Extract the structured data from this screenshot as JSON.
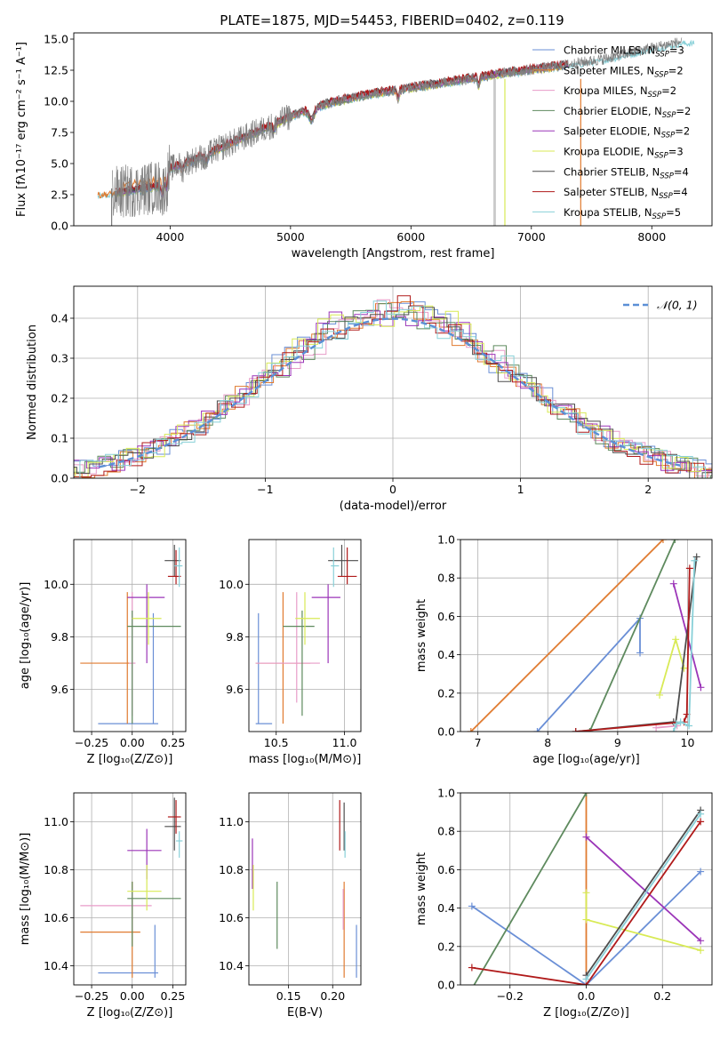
{
  "figure_title": "PLATE=1875, MJD=54453, FIBERID=0402, z=0.119",
  "colors": {
    "chabrier_miles": "#6a8fd6",
    "salpeter_miles": "#e07b30",
    "kroupa_miles": "#e89cc8",
    "chabrier_elodie": "#5e8a5e",
    "salpeter_elodie": "#9b35b8",
    "kroupa_elodie": "#d8ea55",
    "chabrier_stelib": "#4d4d4d",
    "salpeter_stelib": "#b01a1a",
    "kroupa_stelib": "#88d0d8",
    "data": "#808080",
    "gaussian": "#5b8fd6"
  },
  "chart_data": [
    {
      "id": "spectrum",
      "type": "line",
      "xlabel": "wavelength [Angstrom, rest frame]",
      "ylabel": "Flux [fλ10⁻¹⁷ erg cm⁻² s⁻¹ A⁻¹]",
      "xlim": [
        3200,
        8500
      ],
      "ylim": [
        0,
        15.5
      ],
      "xticks": [
        4000,
        5000,
        6000,
        7000,
        8000
      ],
      "yticks": [
        0.0,
        2.5,
        5.0,
        7.5,
        10.0,
        12.5,
        15.0
      ],
      "ytick_labels": [
        "0.0",
        "2.5",
        "5.0",
        "7.5",
        "10.0",
        "12.5",
        "15.0"
      ],
      "grid": false,
      "legend_position": "right",
      "continuum": {
        "x": [
          3400,
          3600,
          3800,
          3950,
          4000,
          4200,
          4500,
          4800,
          5000,
          5300,
          5600,
          6000,
          6400,
          6800,
          7200,
          7600,
          8000,
          8250
        ],
        "y": [
          2.5,
          2.7,
          3.0,
          3.2,
          4.6,
          5.3,
          6.6,
          7.9,
          8.8,
          9.8,
          10.5,
          11.1,
          11.7,
          12.3,
          12.8,
          13.4,
          14.3,
          14.8
        ]
      },
      "legend": [
        {
          "label": "Chabrier MILES, N",
          "sub": "SSP",
          "eq": "=3"
        },
        {
          "label": "Salpeter MILES, N",
          "sub": "SSP",
          "eq": "=2"
        },
        {
          "label": "Kroupa MILES, N",
          "sub": "SSP",
          "eq": "=2"
        },
        {
          "label": "Chabrier ELODIE, N",
          "sub": "SSP",
          "eq": "=2"
        },
        {
          "label": "Salpeter ELODIE, N",
          "sub": "SSP",
          "eq": "=2"
        },
        {
          "label": "Kroupa ELODIE, N",
          "sub": "SSP",
          "eq": "=3"
        },
        {
          "label": "Chabrier STELIB, N",
          "sub": "SSP",
          "eq": "=4"
        },
        {
          "label": "Salpeter STELIB, N",
          "sub": "SSP",
          "eq": "=4"
        },
        {
          "label": "Kroupa STELIB, N",
          "sub": "SSP",
          "eq": "=5"
        }
      ]
    },
    {
      "id": "residual_hist",
      "type": "area",
      "xlabel": "(data-model)/error",
      "ylabel": "Normed distribution",
      "xlim": [
        -2.5,
        2.5
      ],
      "ylim": [
        0,
        0.48
      ],
      "xticks": [
        -2,
        -1,
        0,
        1,
        2
      ],
      "xtick_labels": [
        "−2",
        "−1",
        "0",
        "1",
        "2"
      ],
      "yticks": [
        0.0,
        0.1,
        0.2,
        0.3,
        0.4
      ],
      "ytick_labels": [
        "0.0",
        "0.1",
        "0.2",
        "0.3",
        "0.4"
      ],
      "grid": true,
      "legend": {
        "label": "𝒩(0, 1)",
        "position": "top-right"
      },
      "bin_width": 0.1
    },
    {
      "id": "age_vs_Z",
      "type": "scatter",
      "xlabel": "Z [log₁₀(Z/Z⊙)]",
      "ylabel": "age  [log₁₀(age/yr)]",
      "xlim": [
        -0.36,
        0.33
      ],
      "ylim": [
        9.44,
        10.17
      ],
      "xticks": [
        -0.25,
        0.0,
        0.25
      ],
      "xtick_labels": [
        "−0.25",
        "0.00",
        "0.25"
      ],
      "yticks": [
        9.6,
        9.8,
        10.0
      ],
      "ytick_labels": [
        "9.6",
        "9.8",
        "10.0"
      ],
      "points": [
        {
          "c": "chabrier_miles",
          "x": 0.13,
          "xe": [
            -0.21,
            0.16
          ],
          "y": 9.47,
          "ye": [
            9.47,
            9.89
          ]
        },
        {
          "c": "salpeter_miles",
          "x": -0.03,
          "xe": [
            -0.32,
            0.0
          ],
          "y": 9.7,
          "ye": [
            9.47,
            9.97
          ]
        },
        {
          "c": "kroupa_miles",
          "x": 0.0,
          "xe": [
            -0.02,
            0.02
          ],
          "y": 9.7,
          "ye": [
            9.5,
            9.97
          ]
        },
        {
          "c": "chabrier_elodie",
          "x": 0.0,
          "xe": [
            -0.03,
            0.3
          ],
          "y": 9.84,
          "ye": [
            9.47,
            9.9
          ]
        },
        {
          "c": "salpeter_elodie",
          "x": 0.09,
          "xe": [
            -0.03,
            0.2
          ],
          "y": 9.95,
          "ye": [
            9.7,
            10.0
          ]
        },
        {
          "c": "kroupa_elodie",
          "x": 0.1,
          "xe": [
            0.0,
            0.18
          ],
          "y": 9.87,
          "ye": [
            9.77,
            9.97
          ]
        },
        {
          "c": "chabrier_stelib",
          "x": 0.26,
          "xe": [
            0.2,
            0.3
          ],
          "y": 10.09,
          "ye": [
            10.03,
            10.15
          ]
        },
        {
          "c": "salpeter_stelib",
          "x": 0.27,
          "xe": [
            0.22,
            0.3
          ],
          "y": 10.03,
          "ye": [
            10.0,
            10.13
          ]
        },
        {
          "c": "kroupa_stelib",
          "x": 0.29,
          "xe": [
            0.26,
            0.31
          ],
          "y": 10.07,
          "ye": [
            9.99,
            10.14
          ]
        }
      ]
    },
    {
      "id": "age_vs_mass",
      "type": "scatter",
      "xlabel": "mass [log₁₀(M/M⊙)]",
      "ylabel": "",
      "xlim": [
        10.3,
        11.12
      ],
      "ylim": [
        9.44,
        10.17
      ],
      "xticks": [
        10.5,
        11.0
      ],
      "xtick_labels": [
        "10.5",
        "11.0"
      ],
      "yticks": [
        9.6,
        9.8,
        10.0
      ],
      "ytick_labels": [
        "9.6",
        "9.8",
        "10.0"
      ],
      "points": [
        {
          "c": "chabrier_miles",
          "x": 10.37,
          "xe": [
            10.35,
            10.47
          ],
          "y": 9.47,
          "ye": [
            9.47,
            9.89
          ]
        },
        {
          "c": "salpeter_miles",
          "x": 10.55,
          "xe": [
            10.35,
            10.75
          ],
          "y": 9.7,
          "ye": [
            9.47,
            9.97
          ]
        },
        {
          "c": "kroupa_miles",
          "x": 10.65,
          "xe": [
            10.35,
            10.82
          ],
          "y": 9.7,
          "ye": [
            9.55,
            9.97
          ]
        },
        {
          "c": "chabrier_elodie",
          "x": 10.69,
          "xe": [
            10.55,
            10.78
          ],
          "y": 9.84,
          "ye": [
            9.5,
            9.9
          ]
        },
        {
          "c": "salpeter_elodie",
          "x": 10.88,
          "xe": [
            10.76,
            10.97
          ],
          "y": 9.95,
          "ye": [
            9.7,
            10.0
          ]
        },
        {
          "c": "kroupa_elodie",
          "x": 10.71,
          "xe": [
            10.64,
            10.82
          ],
          "y": 9.87,
          "ye": [
            9.77,
            9.97
          ]
        },
        {
          "c": "chabrier_stelib",
          "x": 10.98,
          "xe": [
            10.88,
            11.1
          ],
          "y": 10.09,
          "ye": [
            10.03,
            10.15
          ]
        },
        {
          "c": "salpeter_stelib",
          "x": 11.02,
          "xe": [
            10.95,
            11.09
          ],
          "y": 10.03,
          "ye": [
            10.0,
            10.14
          ]
        },
        {
          "c": "kroupa_stelib",
          "x": 10.92,
          "xe": [
            10.9,
            10.96
          ],
          "y": 10.07,
          "ye": [
            9.99,
            10.14
          ]
        }
      ]
    },
    {
      "id": "weight_vs_age",
      "type": "line",
      "xlabel": "age  [log₁₀(age/yr)]",
      "ylabel": "mass weight",
      "xlim": [
        6.75,
        10.35
      ],
      "ylim": [
        0,
        1.0
      ],
      "xticks": [
        7,
        8,
        9,
        10
      ],
      "xtick_labels": [
        "7",
        "8",
        "9",
        "10"
      ],
      "yticks": [
        0.0,
        0.2,
        0.4,
        0.6,
        0.8,
        1.0
      ],
      "ytick_labels": [
        "0.0",
        "0.2",
        "0.4",
        "0.6",
        "0.8",
        "1.0"
      ],
      "grid": true,
      "series": [
        {
          "c": "chabrier_miles",
          "x": [
            7.85,
            9.32,
            9.32
          ],
          "y": [
            0.0,
            0.59,
            0.41
          ]
        },
        {
          "c": "salpeter_miles",
          "x": [
            6.9,
            9.65
          ],
          "y": [
            0.0,
            1.0
          ]
        },
        {
          "c": "kroupa_miles",
          "x": [
            9.55,
            9.85
          ],
          "y": [
            0.02,
            0.03
          ]
        },
        {
          "c": "chabrier_elodie",
          "x": [
            8.6,
            9.82
          ],
          "y": [
            0.0,
            1.0
          ]
        },
        {
          "c": "salpeter_elodie",
          "x": [
            9.8,
            10.19
          ],
          "y": [
            0.77,
            0.23
          ]
        },
        {
          "c": "kroupa_elodie",
          "x": [
            9.6,
            9.83,
            9.95
          ],
          "y": [
            0.19,
            0.48,
            0.33
          ]
        },
        {
          "c": "chabrier_stelib",
          "x": [
            8.4,
            9.8,
            9.83,
            10.13
          ],
          "y": [
            0.0,
            0.05,
            0.04,
            0.91
          ]
        },
        {
          "c": "salpeter_stelib",
          "x": [
            8.4,
            9.95,
            9.99,
            10.03
          ],
          "y": [
            0.0,
            0.05,
            0.09,
            0.85
          ]
        },
        {
          "c": "kroupa_stelib",
          "x": [
            9.8,
            9.84,
            9.9,
            10.02,
            10.1
          ],
          "y": [
            0.0,
            0.04,
            0.05,
            0.03,
            0.89
          ]
        }
      ]
    },
    {
      "id": "mass_vs_Z",
      "type": "scatter",
      "xlabel": "Z [log₁₀(Z/Z⊙)]",
      "ylabel": "mass [log₁₀(M/M⊙)]",
      "xlim": [
        -0.36,
        0.33
      ],
      "ylim": [
        10.32,
        11.12
      ],
      "xticks": [
        -0.25,
        0.0,
        0.25
      ],
      "xtick_labels": [
        "−0.25",
        "0.00",
        "0.25"
      ],
      "yticks": [
        10.4,
        10.6,
        10.8,
        11.0
      ],
      "ytick_labels": [
        "10.4",
        "10.6",
        "10.8",
        "11.0"
      ],
      "points": [
        {
          "c": "chabrier_miles",
          "x": 0.14,
          "xe": [
            -0.21,
            0.16
          ],
          "y": 10.37,
          "ye": [
            10.35,
            10.57
          ]
        },
        {
          "c": "salpeter_miles",
          "x": 0.0,
          "xe": [
            -0.32,
            0.05
          ],
          "y": 10.54,
          "ye": [
            10.35,
            10.75
          ]
        },
        {
          "c": "kroupa_miles",
          "x": 0.0,
          "xe": [
            -0.32,
            0.12
          ],
          "y": 10.65,
          "ye": [
            10.55,
            10.72
          ]
        },
        {
          "c": "chabrier_elodie",
          "x": 0.0,
          "xe": [
            -0.03,
            0.3
          ],
          "y": 10.68,
          "ye": [
            10.48,
            10.75
          ]
        },
        {
          "c": "salpeter_elodie",
          "x": 0.09,
          "xe": [
            -0.03,
            0.18
          ],
          "y": 10.88,
          "ye": [
            10.76,
            10.97
          ]
        },
        {
          "c": "kroupa_elodie",
          "x": 0.09,
          "xe": [
            -0.03,
            0.18
          ],
          "y": 10.71,
          "ye": [
            10.63,
            10.82
          ]
        },
        {
          "c": "chabrier_stelib",
          "x": 0.26,
          "xe": [
            0.2,
            0.3
          ],
          "y": 10.98,
          "ye": [
            10.88,
            11.1
          ]
        },
        {
          "c": "salpeter_stelib",
          "x": 0.27,
          "xe": [
            0.22,
            0.3
          ],
          "y": 11.02,
          "ye": [
            10.95,
            11.09
          ]
        },
        {
          "c": "kroupa_stelib",
          "x": 0.29,
          "xe": [
            0.27,
            0.31
          ],
          "y": 10.92,
          "ye": [
            10.85,
            10.96
          ]
        }
      ]
    },
    {
      "id": "mass_vs_ebv",
      "type": "scatter",
      "xlabel": "E(B-V)",
      "ylabel": "",
      "xlim": [
        0.105,
        0.232
      ],
      "ylim": [
        10.32,
        11.12
      ],
      "xticks": [
        0.15,
        0.2
      ],
      "xtick_labels": [
        "0.15",
        "0.20"
      ],
      "yticks": [
        10.4,
        10.6,
        10.8,
        11.0
      ],
      "ytick_labels": [
        "10.4",
        "10.6",
        "10.8",
        "11.0"
      ],
      "points": [
        {
          "c": "chabrier_miles",
          "x": 0.227,
          "xe": [
            0.227,
            0.227
          ],
          "y": 10.45,
          "ye": [
            10.35,
            10.57
          ]
        },
        {
          "c": "salpeter_miles",
          "x": 0.213,
          "xe": [
            0.213,
            0.213
          ],
          "y": 10.55,
          "ye": [
            10.35,
            10.75
          ]
        },
        {
          "c": "kroupa_miles",
          "x": 0.212,
          "xe": [
            0.212,
            0.212
          ],
          "y": 10.65,
          "ye": [
            10.55,
            10.72
          ]
        },
        {
          "c": "chabrier_elodie",
          "x": 0.137,
          "xe": [
            0.137,
            0.137
          ],
          "y": 10.6,
          "ye": [
            10.47,
            10.75
          ]
        },
        {
          "c": "salpeter_elodie",
          "x": 0.109,
          "xe": [
            0.109,
            0.109
          ],
          "y": 10.82,
          "ye": [
            10.72,
            10.93
          ]
        },
        {
          "c": "kroupa_elodie",
          "x": 0.11,
          "xe": [
            0.11,
            0.11
          ],
          "y": 10.71,
          "ye": [
            10.63,
            10.82
          ]
        },
        {
          "c": "chabrier_stelib",
          "x": 0.213,
          "xe": [
            0.213,
            0.213
          ],
          "y": 10.98,
          "ye": [
            10.88,
            11.08
          ]
        },
        {
          "c": "salpeter_stelib",
          "x": 0.208,
          "xe": [
            0.208,
            0.208
          ],
          "y": 10.98,
          "ye": [
            10.88,
            11.09
          ]
        },
        {
          "c": "kroupa_stelib",
          "x": 0.214,
          "xe": [
            0.214,
            0.214
          ],
          "y": 10.9,
          "ye": [
            10.85,
            10.96
          ]
        }
      ]
    },
    {
      "id": "weight_vs_Z",
      "type": "line",
      "xlabel": "Z [log₁₀(Z/Z⊙)]",
      "ylabel": "mass weight",
      "xlim": [
        -0.33,
        0.33
      ],
      "ylim": [
        0,
        1.0
      ],
      "xticks": [
        -0.2,
        0.0,
        0.2
      ],
      "xtick_labels": [
        "−0.2",
        "0.0",
        "0.2"
      ],
      "yticks": [
        0.0,
        0.2,
        0.4,
        0.6,
        0.8,
        1.0
      ],
      "ytick_labels": [
        "0.0",
        "0.2",
        "0.4",
        "0.6",
        "0.8",
        "1.0"
      ],
      "grid": true,
      "series": [
        {
          "c": "chabrier_miles",
          "x": [
            -0.3,
            0.0,
            0.3
          ],
          "y": [
            0.41,
            0.0,
            0.59
          ]
        },
        {
          "c": "salpeter_miles",
          "x": [
            0.0,
            0.0
          ],
          "y": [
            0.0,
            1.0
          ]
        },
        {
          "c": "kroupa_miles",
          "x": [
            0.0,
            0.0
          ],
          "y": [
            0.0,
            0.05
          ]
        },
        {
          "c": "chabrier_elodie",
          "x": [
            -0.3,
            0.0
          ],
          "y": [
            -0.02,
            1.0
          ]
        },
        {
          "c": "salpeter_elodie",
          "x": [
            0.0,
            0.3
          ],
          "y": [
            0.77,
            0.23
          ]
        },
        {
          "c": "kroupa_elodie",
          "x": [
            0.0,
            0.0,
            0.3
          ],
          "y": [
            0.48,
            0.34,
            0.18
          ]
        },
        {
          "c": "chabrier_stelib",
          "x": [
            0.0,
            0.3
          ],
          "y": [
            0.05,
            0.91
          ]
        },
        {
          "c": "salpeter_stelib",
          "x": [
            -0.3,
            0.0,
            0.3
          ],
          "y": [
            0.09,
            0.0,
            0.85
          ]
        },
        {
          "c": "kroupa_stelib",
          "x": [
            0.0,
            0.3
          ],
          "y": [
            0.03,
            0.89
          ]
        }
      ]
    }
  ]
}
